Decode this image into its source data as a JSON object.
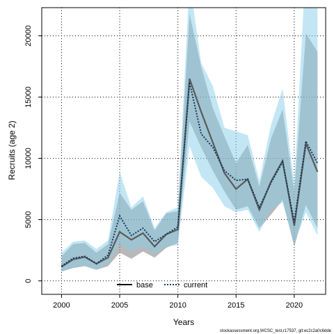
{
  "chart_data": {
    "type": "line",
    "xlabel": "Years",
    "ylabel": "Recruits (age 2)",
    "xlim": [
      1998.3,
      2022.7
    ],
    "ylim": [
      -1100,
      22300
    ],
    "x_ticks": [
      2000,
      2005,
      2010,
      2015,
      2020
    ],
    "y_ticks": [
      0,
      5000,
      10000,
      15000,
      20000
    ],
    "grid": "dotted",
    "legend_position": "bottom-center",
    "footer": "stockassessment.org,WCSC_test,r17537, git:ec2c2a0c6dde",
    "colors": {
      "base_line": "#000000",
      "base_band": "#808080",
      "current_line": "#0f3a5c",
      "current_band": "#87ceeb"
    },
    "x": [
      2000,
      2001,
      2002,
      2003,
      2004,
      2005,
      2006,
      2007,
      2008,
      2009,
      2010,
      2011,
      2012,
      2013,
      2014,
      2015,
      2016,
      2017,
      2018,
      2019,
      2020,
      2021,
      2022
    ],
    "series": [
      {
        "name": "base",
        "style": "solid",
        "values": [
          1150,
          1750,
          1950,
          1400,
          1900,
          4000,
          3350,
          3900,
          2800,
          3800,
          4200,
          16500,
          13800,
          11300,
          8800,
          7500,
          8300,
          5800,
          8100,
          9800,
          4500,
          11200,
          8900
        ],
        "lower": [
          750,
          1050,
          1200,
          900,
          1200,
          2300,
          1800,
          2400,
          1900,
          2700,
          3100,
          13000,
          10900,
          9000,
          7300,
          5800,
          6100,
          4300,
          5400,
          6600,
          2800,
          6200,
          4300
        ],
        "upper": [
          2000,
          3000,
          3100,
          2300,
          3000,
          7200,
          5800,
          6500,
          4100,
          5500,
          5700,
          21800,
          17500,
          14100,
          11800,
          9600,
          11100,
          7700,
          11600,
          14000,
          7300,
          20200,
          18700
        ]
      },
      {
        "name": "current",
        "style": "dotted",
        "values": [
          1200,
          1850,
          2000,
          1400,
          2100,
          5300,
          3700,
          4300,
          3200,
          3800,
          4400,
          16200,
          12000,
          10900,
          9000,
          8200,
          8300,
          6000,
          8000,
          9700,
          4800,
          11400,
          9600
        ],
        "lower": [
          750,
          1100,
          1200,
          900,
          1400,
          3000,
          2400,
          2800,
          2200,
          2800,
          2900,
          11000,
          8500,
          7600,
          6100,
          5600,
          5800,
          4000,
          5800,
          6400,
          3000,
          5600,
          3700
        ],
        "upper": [
          2300,
          3200,
          3300,
          2600,
          3300,
          8900,
          6000,
          6900,
          4300,
          5600,
          6000,
          24500,
          17800,
          15900,
          12500,
          12200,
          11900,
          8200,
          12700,
          15700,
          7900,
          26000,
          26000
        ]
      }
    ]
  }
}
